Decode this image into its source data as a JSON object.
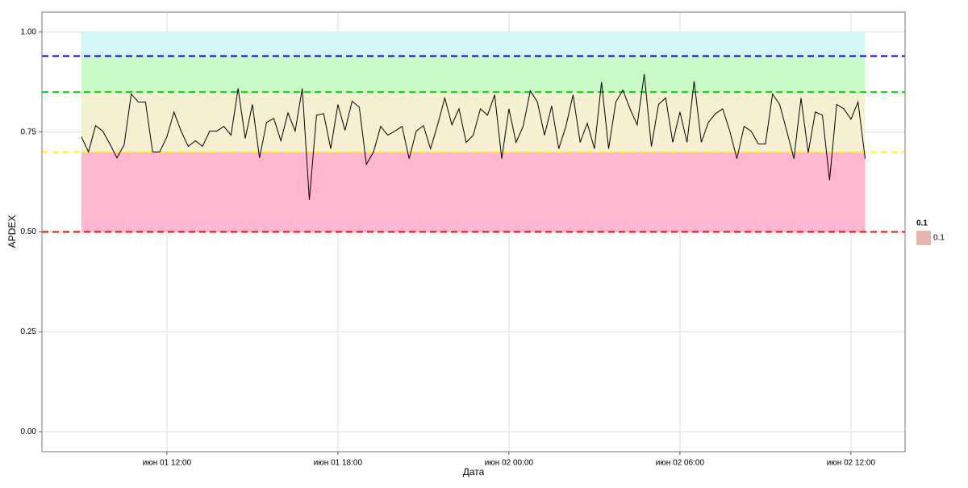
{
  "chart_data": {
    "type": "line",
    "x_label": "Дата",
    "y_label": "APDEX",
    "x": [
      "июн 01 09:00",
      "июн 01 09:15",
      "июн 01 09:30",
      "июн 01 09:45",
      "июн 01 10:00",
      "июн 01 10:15",
      "июн 01 10:30",
      "июн 01 10:45",
      "июн 01 11:00",
      "июн 01 11:15",
      "июн 01 11:30",
      "июн 01 11:45",
      "июн 01 12:00",
      "июн 01 12:15",
      "июн 01 12:30",
      "июн 01 12:45",
      "июн 01 13:00",
      "июн 01 13:15",
      "июн 01 13:30",
      "июн 01 13:45",
      "июн 01 14:00",
      "июн 01 14:15",
      "июн 01 14:30",
      "июн 01 14:45",
      "июн 01 15:00",
      "июн 01 15:15",
      "июн 01 15:30",
      "июн 01 15:45",
      "июн 01 16:00",
      "июн 01 16:15",
      "июн 01 16:30",
      "июн 01 16:45",
      "июн 01 17:00",
      "июн 01 17:15",
      "июн 01 17:30",
      "июн 01 17:45",
      "июн 01 18:00",
      "июн 01 18:15",
      "июн 01 18:30",
      "июн 01 18:45",
      "июн 01 19:00",
      "июн 01 19:15",
      "июн 01 19:30",
      "июн 01 19:45",
      "июн 01 20:00",
      "июн 01 20:15",
      "июн 01 20:30",
      "июн 01 20:45",
      "июн 01 21:00",
      "июн 01 21:15",
      "июн 01 21:30",
      "июн 01 21:45",
      "июн 01 22:00",
      "июн 01 22:15",
      "июн 01 22:30",
      "июн 01 22:45",
      "июн 01 23:00",
      "июн 01 23:15",
      "июн 01 23:30",
      "июн 01 23:45",
      "июн 02 00:00",
      "июн 02 00:15",
      "июн 02 00:30",
      "июн 02 00:45",
      "июн 02 01:00",
      "июн 02 01:15",
      "июн 02 01:30",
      "июн 02 01:45",
      "июн 02 02:00",
      "июн 02 02:15",
      "июн 02 02:30",
      "июн 02 02:45",
      "июн 02 03:00",
      "июн 02 03:15",
      "июн 02 03:30",
      "июн 02 03:45",
      "июн 02 04:00",
      "июн 02 04:15",
      "июн 02 04:30",
      "июн 02 04:45",
      "июн 02 05:00",
      "июн 02 05:15",
      "июн 02 05:30",
      "июн 02 05:45",
      "июн 02 06:00",
      "июн 02 06:15",
      "июн 02 06:30",
      "июн 02 06:45",
      "июн 02 07:00",
      "июн 02 07:15",
      "июн 02 07:30",
      "июн 02 07:45",
      "июн 02 08:00",
      "июн 02 08:15",
      "июн 02 08:30",
      "июн 02 08:45",
      "июн 02 09:00",
      "июн 02 09:15",
      "июн 02 09:30",
      "июн 02 09:45",
      "июн 02 10:00",
      "июн 02 10:15",
      "июн 02 10:30",
      "июн 02 10:45",
      "июн 02 11:00",
      "июн 02 11:15",
      "июн 02 11:30",
      "июн 02 11:45",
      "июн 02 12:00",
      "июн 02 12:15",
      "июн 02 12:30"
    ],
    "series": [
      {
        "color": "#000000",
        "values": [
          0.738,
          0.7,
          0.766,
          0.752,
          0.72,
          0.685,
          0.718,
          0.845,
          0.825,
          0.825,
          0.7,
          0.7,
          0.738,
          0.8,
          0.752,
          0.714,
          0.728,
          0.714,
          0.752,
          0.752,
          0.764,
          0.742,
          0.859,
          0.734,
          0.819,
          0.685,
          0.774,
          0.784,
          0.728,
          0.798,
          0.752,
          0.859,
          0.58,
          0.792,
          0.796,
          0.708,
          0.819,
          0.754,
          0.827,
          0.812,
          0.669,
          0.7,
          0.764,
          0.742,
          0.752,
          0.764,
          0.683,
          0.752,
          0.766,
          0.708,
          0.768,
          0.835,
          0.768,
          0.808,
          0.724,
          0.742,
          0.808,
          0.792,
          0.843,
          0.683,
          0.808,
          0.724,
          0.764,
          0.853,
          0.825,
          0.742,
          0.815,
          0.708,
          0.764,
          0.843,
          0.724,
          0.772,
          0.708,
          0.875,
          0.708,
          0.825,
          0.855,
          0.808,
          0.768,
          0.895,
          0.714,
          0.819,
          0.835,
          0.724,
          0.8,
          0.724,
          0.877,
          0.724,
          0.774,
          0.796,
          0.808,
          0.752,
          0.683,
          0.764,
          0.752,
          0.72,
          0.72,
          0.845,
          0.819,
          0.752,
          0.683,
          0.835,
          0.698,
          0.8,
          0.792,
          0.629,
          0.819,
          0.808,
          0.782,
          0.825,
          0.683
        ]
      }
    ],
    "bands": [
      {
        "from": 0.94,
        "to": 1.0,
        "color": "#d2f5f5"
      },
      {
        "from": 0.85,
        "to": 0.94,
        "color": "#c8fac8"
      },
      {
        "from": 0.7,
        "to": 0.85,
        "color": "#f5f0d2"
      },
      {
        "from": 0.5,
        "to": 0.7,
        "color": "#ffb6d0"
      }
    ],
    "hlines": [
      {
        "value": 0.94,
        "color": "#0000ff"
      },
      {
        "value": 0.85,
        "color": "#00dd00"
      },
      {
        "value": 0.7,
        "color": "#ffff00"
      },
      {
        "value": 0.5,
        "color": "#ff0000"
      }
    ],
    "xlim": [
      "июн 01 07:37",
      "июн 02 13:54"
    ],
    "xticks": [
      "июн 01 12:00",
      "июн 01 18:00",
      "июн 02 00:00",
      "июн 02 06:00",
      "июн 02 12:00"
    ],
    "ylim": [
      -0.05,
      1.05
    ],
    "yticks": [
      {
        "value": 0,
        "label": "0.00"
      },
      {
        "value": 0.25,
        "label": "0.25"
      },
      {
        "value": 0.5,
        "label": "0.50"
      },
      {
        "value": 0.75,
        "label": "0.75"
      },
      {
        "value": 1,
        "label": "1.00"
      }
    ],
    "grid": true,
    "legend": {
      "title": "0.1",
      "labels": [
        "0.1"
      ],
      "color": "#e8b4b0",
      "position": "right"
    }
  }
}
